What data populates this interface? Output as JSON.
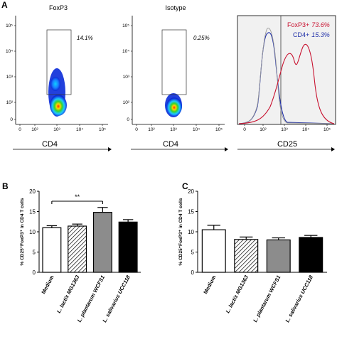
{
  "panels": {
    "A": "A",
    "B": "B",
    "C": "C"
  },
  "flow": {
    "plots": [
      {
        "title": "FoxP3",
        "gate_pct": "14.1%",
        "xlabel": "CD4"
      },
      {
        "title": "Isotype",
        "gate_pct": "0.25%",
        "xlabel": "CD4"
      }
    ],
    "y_ticks": [
      "10⁵",
      "10⁴",
      "10³",
      "10²",
      "0"
    ],
    "x_ticks": [
      "0",
      "10²",
      "10³",
      "10⁴",
      "10⁵"
    ],
    "histogram": {
      "xlabel": "CD25",
      "x_ticks": [
        "0",
        "10²",
        "10³",
        "10⁴",
        "10⁵"
      ],
      "legend": [
        {
          "label": "FoxP3+",
          "value": "73.6%",
          "color": "#c8102e"
        },
        {
          "label": "CD4+",
          "value": "15.3%",
          "color": "#1f2fa8"
        }
      ]
    }
  },
  "chart_data": [
    {
      "type": "bar",
      "panel": "B",
      "categories": [
        "Medium",
        "L. lactis MG1363",
        "L. plantarum WCFS1",
        "L. salivarius UCC118"
      ],
      "values": [
        11.0,
        11.4,
        14.8,
        12.4
      ],
      "errors": [
        0.5,
        0.5,
        1.2,
        0.6
      ],
      "fills": [
        "white",
        "hatched",
        "gray",
        "black"
      ],
      "ylabel": "% CD25⁺FoxP3⁺ in CD4 T cells",
      "ylim": [
        0,
        20
      ],
      "yticks": [
        "0",
        "5",
        "10",
        "15",
        "20"
      ],
      "significance": {
        "label": "**",
        "from": 0,
        "to": 2
      }
    },
    {
      "type": "bar",
      "panel": "C",
      "categories": [
        "Medium",
        "L. lactis MG1363",
        "L. plantarum WCFS1",
        "L. salivarius UCC118"
      ],
      "values": [
        10.5,
        8.1,
        8.0,
        8.6
      ],
      "errors": [
        1.1,
        0.6,
        0.5,
        0.5
      ],
      "fills": [
        "white",
        "hatched",
        "gray",
        "black"
      ],
      "ylabel": "% CD25⁺FoxP3⁺ in CD4 T cells",
      "ylim": [
        0,
        20
      ],
      "yticks": [
        "0",
        "5",
        "10",
        "15",
        "20"
      ]
    }
  ]
}
